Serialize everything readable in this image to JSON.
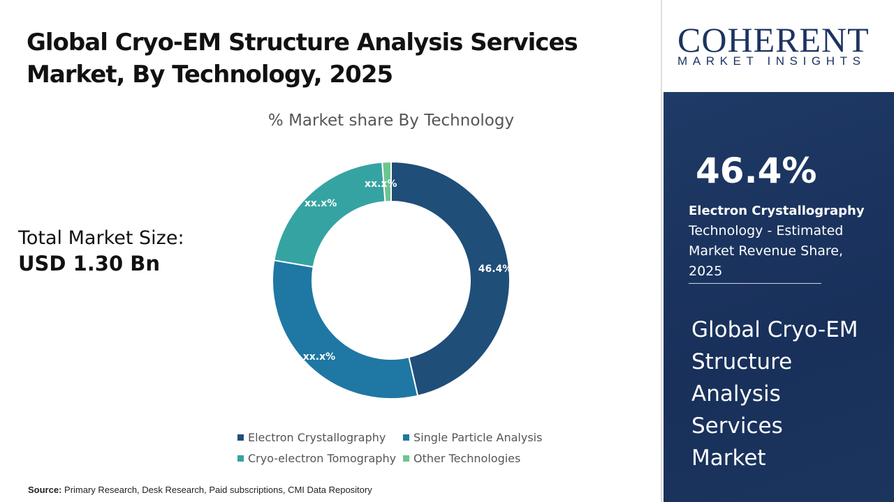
{
  "title": "Global Cryo-EM Structure Analysis Services Market, By Technology, 2025",
  "market_size": {
    "label": "Total Market Size:",
    "value": "USD 1.30 Bn"
  },
  "source": {
    "label": "Source:",
    "text": " Primary Research, Desk Research, Paid subscriptions, CMI Data Repository"
  },
  "logo": {
    "name": "COHERENT",
    "tagline": "MARKET INSIGHTS"
  },
  "highlight": {
    "value": "46.4%",
    "segment": "Electron Crystallography",
    "description": "Technology - Estimated Market Revenue Share, 2025",
    "market_name": "Global Cryo-EM Structure Analysis Services Market"
  },
  "chart_data": {
    "type": "pie",
    "title": "% Market share By Technology",
    "categories": [
      "Electron Crystallography",
      "Single Particle Analysis",
      "Cryo-electron Tomography",
      "Other Technologies"
    ],
    "values": [
      46.4,
      31.3,
      21.1,
      1.2
    ],
    "data_labels": [
      "46.4%",
      "xx.x%",
      "xx.x%",
      "xx.x%"
    ],
    "colors": [
      "#1f4e79",
      "#1f77a3",
      "#36a3a3",
      "#6cc58f"
    ],
    "legend": "bottom"
  }
}
